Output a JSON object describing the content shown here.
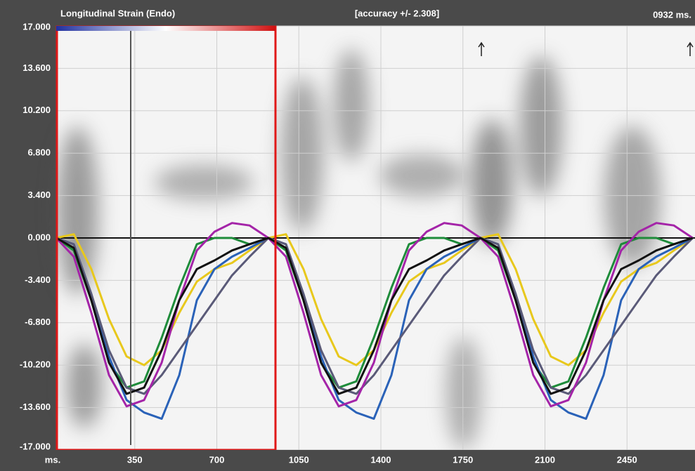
{
  "chart_data": {
    "type": "line",
    "title": "Longitudinal Strain (Endo)",
    "annotations": [
      "[accuracy +/- 2.308]",
      "0932 ms."
    ],
    "x_label": "ms.",
    "xlim": [
      15,
      2740
    ],
    "xticks": [
      350,
      700,
      1050,
      1400,
      1750,
      2100,
      2450
    ],
    "ylim": [
      -17,
      17
    ],
    "yticks": [
      {
        "value": 17,
        "label": "17.000"
      },
      {
        "value": 13.6,
        "label": "13.600"
      },
      {
        "value": 10.2,
        "label": "10.200"
      },
      {
        "value": 6.8,
        "label": "6.800"
      },
      {
        "value": 3.4,
        "label": "3.400"
      },
      {
        "value": 0,
        "label": "0.000"
      },
      {
        "value": -3.4,
        "label": "-3.400"
      },
      {
        "value": -6.8,
        "label": "-6.800"
      },
      {
        "value": -10.2,
        "label": "-10.200"
      },
      {
        "value": -13.6,
        "label": "-13.600"
      },
      {
        "value": -17,
        "label": "-17.000"
      }
    ],
    "grid": true,
    "x": [
      15,
      90,
      165,
      240,
      315,
      390,
      465,
      540,
      615,
      690,
      765,
      840,
      920,
      995,
      1070,
      1145,
      1220,
      1295,
      1370,
      1445,
      1520,
      1595,
      1670,
      1745,
      1825,
      1900,
      1975,
      2050,
      2125,
      2200,
      2275,
      2350,
      2425,
      2500,
      2575,
      2650,
      2730
    ],
    "series": [
      {
        "color": "#e8c81c",
        "values": [
          0,
          0.3,
          -2.5,
          -6.5,
          -9.5,
          -10.2,
          -9,
          -6,
          -3.5,
          -2.5,
          -2,
          -1,
          0,
          0.3,
          -2.5,
          -6.5,
          -9.5,
          -10.2,
          -9,
          -6,
          -3.5,
          -2.5,
          -2,
          -1,
          0,
          0.3,
          -2.5,
          -6.5,
          -9.5,
          -10.2,
          -9,
          -6,
          -3.5,
          -2.5,
          -2,
          -1,
          0
        ]
      },
      {
        "color": "#1e8c3a",
        "values": [
          0,
          -1,
          -5,
          -10,
          -12,
          -11.5,
          -8,
          -4,
          -0.5,
          0,
          0,
          -0.5,
          0,
          -1,
          -5,
          -10,
          -12,
          -11.5,
          -8,
          -4,
          -0.5,
          0,
          0,
          -0.5,
          0,
          -1,
          -5,
          -10,
          -12,
          -11.5,
          -8,
          -4,
          -0.5,
          0,
          0,
          -0.5,
          0
        ]
      },
      {
        "color": "#2a62b8",
        "values": [
          0,
          -0.5,
          -4.5,
          -9.5,
          -13,
          -14,
          -14.5,
          -11,
          -5,
          -2.5,
          -1.5,
          -0.8,
          0,
          -0.5,
          -4.5,
          -9.5,
          -13,
          -14,
          -14.5,
          -11,
          -5,
          -2.5,
          -1.5,
          -0.8,
          0,
          -0.5,
          -4.5,
          -9.5,
          -13,
          -14,
          -14.5,
          -11,
          -5,
          -2.5,
          -1.5,
          -0.8,
          0
        ]
      },
      {
        "color": "#5a5a78",
        "values": [
          0,
          -0.5,
          -4.5,
          -9,
          -12,
          -12.5,
          -11,
          -9,
          -7,
          -5,
          -3,
          -1.5,
          0,
          -0.5,
          -4.5,
          -9,
          -12,
          -12.5,
          -11,
          -9,
          -7,
          -5,
          -3,
          -1.5,
          0,
          -0.5,
          -4.5,
          -9,
          -12,
          -12.5,
          -11,
          -9,
          -7,
          -5,
          -3,
          -1.5,
          0
        ]
      },
      {
        "color": "#a424a8",
        "values": [
          0,
          -1.5,
          -6,
          -11,
          -13.5,
          -13,
          -10,
          -5,
          -1,
          0.5,
          1.2,
          1,
          0,
          -1.5,
          -6,
          -11,
          -13.5,
          -13,
          -10,
          -5,
          -1,
          0.5,
          1.2,
          1,
          0,
          -1.5,
          -6,
          -11,
          -13.5,
          -13,
          -10,
          -5,
          -1,
          0.5,
          1.2,
          1,
          0
        ]
      },
      {
        "color": "#111111",
        "values": [
          0,
          -0.8,
          -5,
          -10,
          -12.5,
          -12,
          -9,
          -5,
          -2.5,
          -1.8,
          -1,
          -0.5,
          0,
          -0.8,
          -5,
          -10,
          -12.5,
          -12,
          -9,
          -5,
          -2.5,
          -1.8,
          -1,
          -0.5,
          0,
          -0.8,
          -5,
          -10,
          -12.5,
          -12,
          -9,
          -5,
          -2.5,
          -1.8,
          -1,
          -0.5,
          0
        ]
      }
    ]
  }
}
